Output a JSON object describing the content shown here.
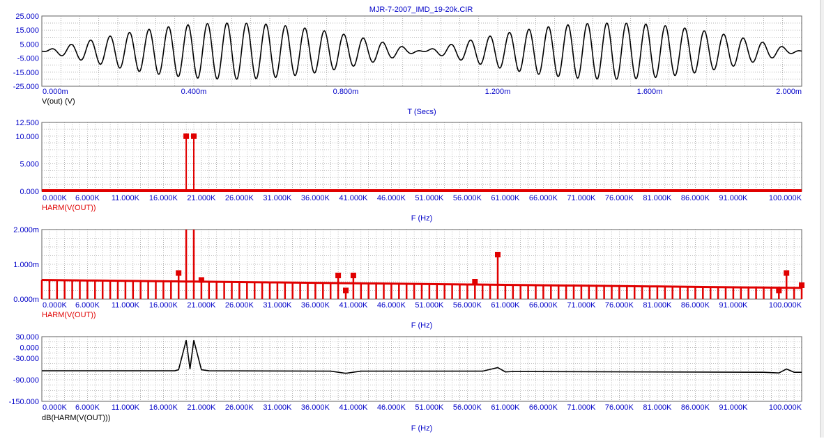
{
  "window": {
    "title": "MJR-7-2007_IMD_19-20k.CIR"
  },
  "colors": {
    "axis_text": "#0000c8",
    "grid": "#808080",
    "black_trace": "#000000",
    "red_trace": "#e00000"
  },
  "chart_data": [
    {
      "type": "line",
      "panel": "transient",
      "title": "MJR-7-2007_IMD_19-20k.CIR",
      "trace_label": "V(out) (V)",
      "xlabel": "T (Secs)",
      "ylabel": "",
      "xlim": [
        0,
        2.0
      ],
      "ylim": [
        -25,
        25
      ],
      "x_ticks": [
        "0.000m",
        "0.400m",
        "0.800m",
        "1.200m",
        "1.600m",
        "2.000m"
      ],
      "y_ticks": [
        "25.000",
        "15.000",
        "5.000",
        "-5.000",
        "-15.000",
        "-25.000"
      ],
      "grid": true,
      "signal": {
        "description": "two-tone 19 kHz + 20 kHz sum, beat envelope 1 kHz",
        "tone1_freq_khz": 19,
        "tone2_freq_khz": 20,
        "tone_amplitude_v": 10,
        "color": "#000000"
      }
    },
    {
      "type": "bar",
      "panel": "harmonics-linear",
      "trace_label": "HARM(V(OUT))",
      "xlabel": "F (Hz)",
      "ylabel": "",
      "xlim": [
        0,
        100
      ],
      "ylim": [
        0,
        12.5
      ],
      "x_ticks": [
        "0.000K",
        "6.000K",
        "11.000K",
        "16.000K",
        "21.000K",
        "26.000K",
        "31.000K",
        "36.000K",
        "41.000K",
        "46.000K",
        "51.000K",
        "56.000K",
        "61.000K",
        "66.000K",
        "71.000K",
        "76.000K",
        "81.000K",
        "86.000K",
        "91.000K",
        "100.000K"
      ],
      "y_ticks": [
        "12.500",
        "10.000",
        "5.000",
        "0.000"
      ],
      "grid": true,
      "peaks": [
        {
          "f_khz": 19,
          "value": 10.0
        },
        {
          "f_khz": 20,
          "value": 10.0
        }
      ],
      "floor_value": 0.0,
      "color": "#e00000"
    },
    {
      "type": "bar",
      "panel": "harmonics-zoom",
      "trace_label": "HARM(V(OUT))",
      "xlabel": "F (Hz)",
      "ylabel": "",
      "xlim": [
        0,
        100
      ],
      "ylim": [
        0,
        2.0
      ],
      "y_unit": "m",
      "x_ticks": [
        "0.000K",
        "6.000K",
        "11.000K",
        "16.000K",
        "21.000K",
        "26.000K",
        "31.000K",
        "36.000K",
        "41.000K",
        "46.000K",
        "51.000K",
        "56.000K",
        "61.000K",
        "66.000K",
        "71.000K",
        "76.000K",
        "81.000K",
        "86.000K",
        "91.000K",
        "100.000K"
      ],
      "y_ticks": [
        "2.000m",
        "1.000m",
        "0.000m"
      ],
      "grid": true,
      "baseline_start_m": 0.55,
      "baseline_end_m": 0.32,
      "spikes": [
        {
          "f_khz": 18,
          "value_m": 0.75
        },
        {
          "f_khz": 19,
          "value_m": 2.0
        },
        {
          "f_khz": 20,
          "value_m": 2.0
        },
        {
          "f_khz": 21,
          "value_m": 0.55
        },
        {
          "f_khz": 39,
          "value_m": 0.68
        },
        {
          "f_khz": 41,
          "value_m": 0.68
        },
        {
          "f_khz": 40,
          "value_m": 0.25
        },
        {
          "f_khz": 57,
          "value_m": 0.5
        },
        {
          "f_khz": 60,
          "value_m": 1.28
        },
        {
          "f_khz": 97,
          "value_m": 0.25
        },
        {
          "f_khz": 98,
          "value_m": 0.75
        },
        {
          "f_khz": 100,
          "value_m": 0.4
        }
      ],
      "color": "#e00000"
    },
    {
      "type": "line",
      "panel": "harmonics-db",
      "trace_label": "dB(HARM(V(OUT)))",
      "xlabel": "F (Hz)",
      "ylabel": "",
      "xlim": [
        0,
        100
      ],
      "ylim": [
        -150,
        30
      ],
      "x_ticks": [
        "0.000K",
        "6.000K",
        "11.000K",
        "16.000K",
        "21.000K",
        "26.000K",
        "31.000K",
        "36.000K",
        "41.000K",
        "46.000K",
        "51.000K",
        "56.000K",
        "61.000K",
        "66.000K",
        "71.000K",
        "76.000K",
        "81.000K",
        "86.000K",
        "91.000K",
        "100.000K"
      ],
      "y_ticks": [
        "30.000",
        "0.000",
        "-30.000",
        "-90.000",
        "-150.000"
      ],
      "grid": true,
      "points": [
        [
          0,
          -65
        ],
        [
          17.5,
          -65
        ],
        [
          18,
          -62
        ],
        [
          19,
          20
        ],
        [
          19.5,
          -60
        ],
        [
          20,
          20
        ],
        [
          21,
          -62
        ],
        [
          22,
          -65
        ],
        [
          38,
          -66
        ],
        [
          40,
          -72
        ],
        [
          42,
          -66
        ],
        [
          58,
          -66
        ],
        [
          60,
          -56
        ],
        [
          61,
          -68
        ],
        [
          62,
          -67
        ],
        [
          95,
          -69
        ],
        [
          97,
          -71
        ],
        [
          98,
          -60
        ],
        [
          99,
          -69
        ],
        [
          100,
          -69
        ]
      ],
      "color": "#000000"
    }
  ]
}
